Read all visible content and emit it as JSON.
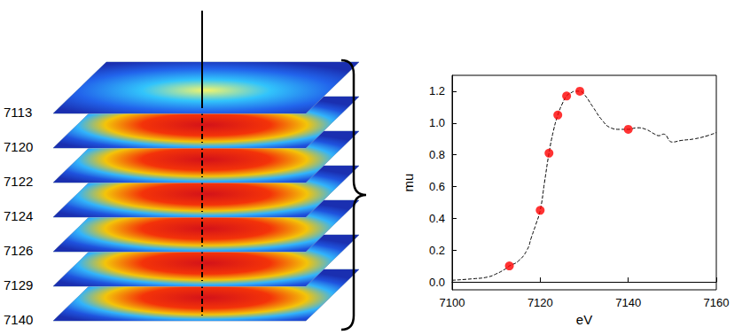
{
  "chart_data": {
    "type": "line",
    "x_label": "eV",
    "y_label": "mu",
    "xlim": [
      7100,
      7160
    ],
    "xticks": [
      7100,
      7120,
      7140,
      7160
    ],
    "ylim": [
      -0.05,
      1.3
    ],
    "yticks": [
      {
        "value": 0,
        "label": "0.0"
      },
      0.2,
      0.4,
      0.6,
      0.8,
      {
        "value": 1,
        "label": "1.0"
      },
      1.2
    ],
    "grid": false,
    "series": [
      {
        "type": "line",
        "line_style": "dashed",
        "color": "#000000",
        "x": [
          7100,
          7105,
          7108,
          7110,
          7112,
          7113,
          7115,
          7117,
          7118,
          7119,
          7120,
          7121,
          7122,
          7123,
          7124,
          7125,
          7126,
          7127,
          7128,
          7129,
          7130,
          7132,
          7134,
          7136,
          7138,
          7140,
          7142,
          7144,
          7146,
          7147,
          7148,
          7150,
          7152,
          7155,
          7158,
          7160
        ],
        "values": [
          0.01,
          0.02,
          0.03,
          0.05,
          0.08,
          0.1,
          0.13,
          0.2,
          0.28,
          0.36,
          0.45,
          0.63,
          0.81,
          0.95,
          1.05,
          1.12,
          1.17,
          1.19,
          1.2,
          1.2,
          1.18,
          1.1,
          1.02,
          0.97,
          0.96,
          0.96,
          0.97,
          0.96,
          0.93,
          0.92,
          0.93,
          0.88,
          0.89,
          0.9,
          0.92,
          0.94
        ]
      },
      {
        "type": "scatter",
        "marker": "circle",
        "color": "#ff0000",
        "x": [
          7113,
          7120,
          7122,
          7124,
          7126,
          7129,
          7140
        ],
        "values": [
          0.1,
          0.45,
          0.81,
          1.05,
          1.17,
          1.2,
          0.96
        ]
      }
    ]
  },
  "image_stack": {
    "labels": [
      "7113",
      "7120",
      "7122",
      "7124",
      "7126",
      "7129",
      "7140"
    ]
  }
}
